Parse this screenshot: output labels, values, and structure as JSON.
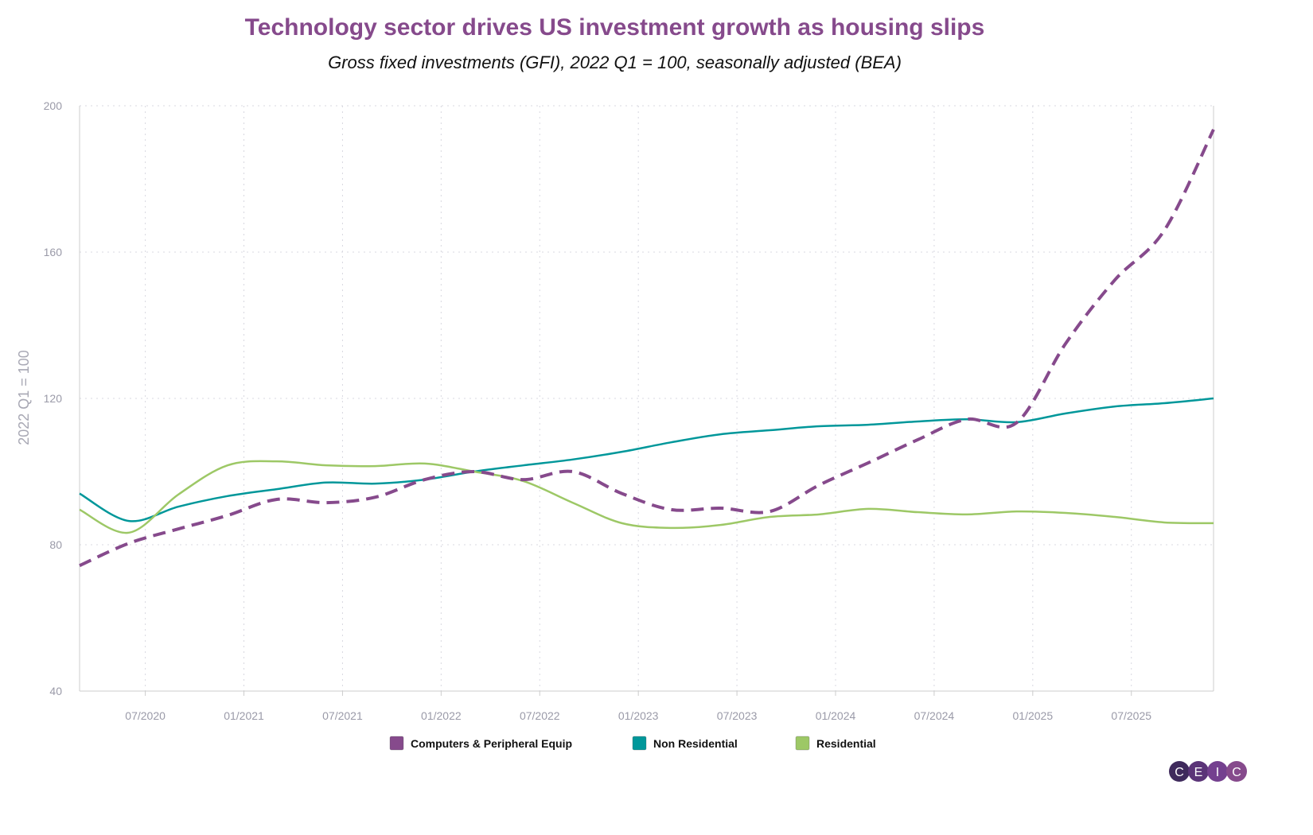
{
  "title": "Technology sector drives US investment growth as housing slips",
  "subtitle": "Gross fixed investments (GFI), 2022 Q1 = 100, seasonally adjusted (BEA)",
  "logo": "CEIC",
  "chart_data": {
    "type": "line",
    "title": "Technology sector drives US investment growth as housing slips",
    "subtitle": "Gross fixed investments (GFI), 2022 Q1 = 100, seasonally adjusted (BEA)",
    "xlabel": "",
    "ylabel": "2022 Q1 = 100",
    "ylim": [
      40,
      200
    ],
    "yticks": [
      40,
      80,
      120,
      160,
      200
    ],
    "xlim": [
      "03/2020",
      "12/2025"
    ],
    "xticks": [
      "07/2020",
      "01/2021",
      "07/2021",
      "01/2022",
      "07/2022",
      "01/2023",
      "07/2023",
      "01/2024",
      "07/2024",
      "01/2025",
      "07/2025"
    ],
    "grid": true,
    "legend_position": "bottom",
    "x": [
      "03/2020",
      "06/2020",
      "09/2020",
      "12/2020",
      "03/2021",
      "06/2021",
      "09/2021",
      "12/2021",
      "03/2022",
      "06/2022",
      "09/2022",
      "12/2022",
      "03/2023",
      "06/2023",
      "09/2023",
      "12/2023",
      "03/2024",
      "06/2024",
      "09/2024",
      "12/2024",
      "03/2025",
      "06/2025",
      "09/2025",
      "12/2025"
    ],
    "series": [
      {
        "name": "Computers & Peripheral Equip",
        "color": "#864a8c",
        "style": "dashed",
        "values": [
          74.3,
          80.4,
          84.3,
          88.0,
          92.4,
          91.5,
          93.0,
          97.8,
          100.0,
          97.8,
          100.0,
          94.0,
          89.6,
          90.0,
          89.1,
          96.3,
          102.4,
          108.7,
          114.3,
          113.3,
          135.0,
          152.4,
          165.9,
          193.5
        ]
      },
      {
        "name": "Non Residential",
        "color": "#00979a",
        "style": "solid",
        "values": [
          94.0,
          86.5,
          90.4,
          93.3,
          95.2,
          97.0,
          96.7,
          97.8,
          100.0,
          101.7,
          103.3,
          105.4,
          108.0,
          110.2,
          111.3,
          112.4,
          112.8,
          113.7,
          114.3,
          113.5,
          115.9,
          117.8,
          118.7,
          120.0
        ]
      },
      {
        "name": "Residential",
        "color": "#9dc866",
        "style": "solid",
        "values": [
          89.6,
          83.3,
          93.7,
          101.7,
          102.8,
          101.7,
          101.5,
          102.2,
          100.0,
          97.4,
          91.5,
          85.9,
          84.6,
          85.4,
          87.6,
          88.3,
          89.8,
          88.9,
          88.3,
          89.1,
          88.7,
          87.6,
          86.1,
          85.9
        ]
      }
    ]
  }
}
